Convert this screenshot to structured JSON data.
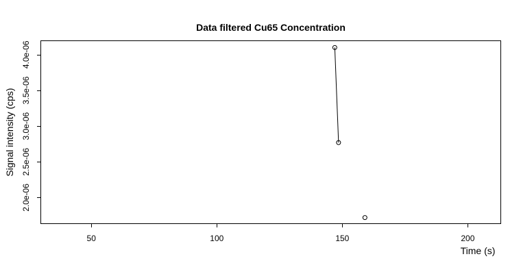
{
  "chart_data": {
    "type": "line",
    "title": "Data filtered Cu65 Concentration",
    "xlabel": "Time (s)",
    "ylabel": "Signal intensity (cps)",
    "xlim": [
      30,
      213
    ],
    "ylim": [
      1.64e-06,
      4.19e-06
    ],
    "x_ticks": [
      50,
      100,
      150,
      200
    ],
    "x_tick_labels": [
      "50",
      "100",
      "150",
      "200"
    ],
    "y_ticks": [
      2e-06,
      2.5e-06,
      3e-06,
      3.5e-06,
      4e-06
    ],
    "y_tick_labels": [
      "2.0e-06",
      "2.5e-06",
      "3.0e-06",
      "3.5e-06",
      "4.0e-06"
    ],
    "grid": false,
    "series": [
      {
        "points": [
          {
            "x": 147,
            "y": 4.1e-06
          },
          {
            "x": 148.5,
            "y": 2.77e-06
          },
          {
            "x": 159,
            "y": 1.72e-06
          }
        ],
        "segments": [
          [
            0,
            1
          ]
        ],
        "color": "#000000"
      }
    ]
  }
}
